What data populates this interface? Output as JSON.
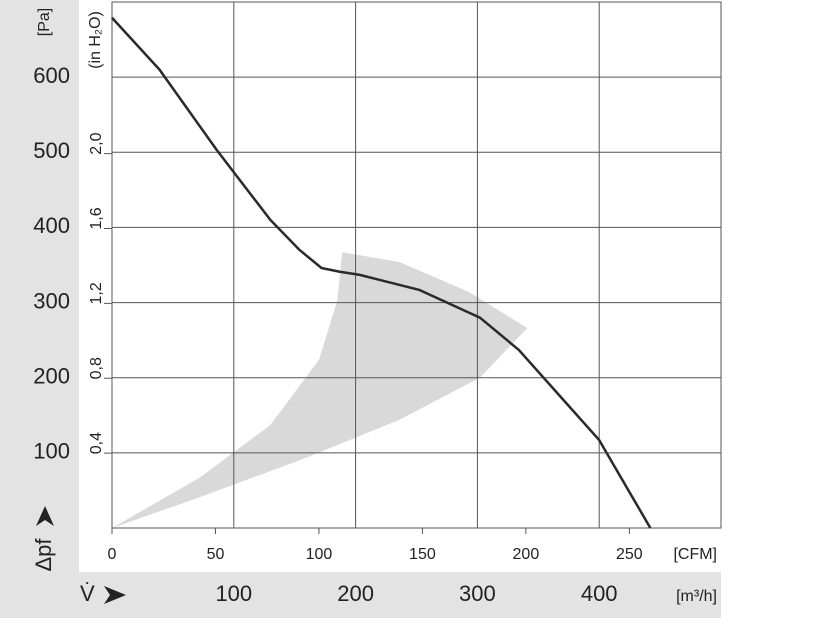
{
  "chart_data": {
    "type": "line",
    "y_label": "[Pa]",
    "y2_label": "(in H₂O)",
    "y_arrow_label": "Δpf",
    "x_label": "[m³/h]",
    "x2_label": "[CFM]",
    "x_arrow_label": "V̇",
    "xlim": [
      0,
      500
    ],
    "xticks": [
      100,
      200,
      300,
      400
    ],
    "x2lim": [
      0,
      294.29
    ],
    "x2ticks": [
      0,
      50,
      100,
      150,
      200,
      250
    ],
    "ylim": [
      0,
      700
    ],
    "yticks": [
      100,
      200,
      300,
      400,
      500,
      600
    ],
    "y2lim": [
      0,
      2.81
    ],
    "y2ticks": [
      {
        "value": 0.4,
        "label": "0,4"
      },
      {
        "value": 0.8,
        "label": "0,8"
      },
      {
        "value": 1.2,
        "label": "1,2"
      },
      {
        "value": 1.6,
        "label": "1,6"
      },
      {
        "value": 2.0,
        "label": "2,0"
      }
    ],
    "grid": true,
    "series": [
      {
        "color": "#2a2a2a",
        "x": [
          0,
          39,
          86,
          130,
          154,
          172,
          187,
          203,
          252,
          302,
          334,
          367,
          400,
          442
        ],
        "values": [
          679,
          610,
          503,
          410,
          370,
          346,
          341,
          337,
          317,
          280,
          237,
          177,
          117,
          0
        ]
      }
    ],
    "shaded_region": {
      "color": "#d9d9d9",
      "x": [
        0,
        72,
        130,
        170,
        185,
        189,
        236,
        293,
        341,
        302,
        236,
        154,
        72
      ],
      "values": [
        0,
        67,
        137,
        224,
        303,
        367,
        354,
        314,
        266,
        200,
        144,
        90,
        41
      ]
    }
  }
}
